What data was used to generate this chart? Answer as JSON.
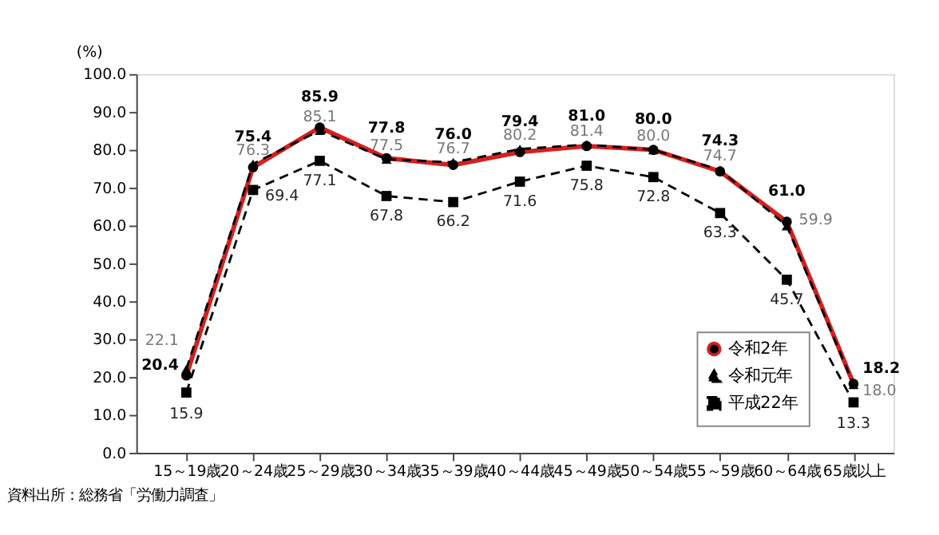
{
  "chart_data": {
    "type": "line",
    "ylabel": "(%)",
    "categories": [
      "15～19歳",
      "20～24歳",
      "25～29歳",
      "30～34歳",
      "35～39歳",
      "40～44歳",
      "45～49歳",
      "50～54歳",
      "55～59歳",
      "60～64歳",
      "65歳以上"
    ],
    "series": [
      {
        "name": "令和2年",
        "color": "#d42020",
        "marker": "circle",
        "line_style": "solid",
        "values": [
          20.4,
          75.4,
          85.9,
          77.8,
          76.0,
          79.4,
          81.0,
          80.0,
          74.3,
          61.0,
          18.2
        ],
        "value_labels": [
          "20.4",
          "75.4",
          "85.9",
          "77.8",
          "76.0",
          "79.4",
          "81.0",
          "80.0",
          "74.3",
          "61.0",
          "18.2"
        ]
      },
      {
        "name": "令和元年",
        "color": "#000000",
        "marker": "triangle",
        "line_style": "dashed",
        "values": [
          22.1,
          76.3,
          85.1,
          77.5,
          76.7,
          80.2,
          81.4,
          80.0,
          74.7,
          59.9,
          18.0
        ],
        "value_labels": [
          "22.1",
          "76.3",
          "85.1",
          "77.5",
          "76.7",
          "80.2",
          "81.4",
          "80.0",
          "74.7",
          "59.9",
          "18.0"
        ]
      },
      {
        "name": "平成22年",
        "color": "#000000",
        "marker": "square",
        "line_style": "dashed",
        "values": [
          15.9,
          69.4,
          77.1,
          67.8,
          66.2,
          71.6,
          75.8,
          72.8,
          63.3,
          45.7,
          13.3
        ],
        "value_labels": [
          "15.9",
          "69.4",
          "77.1",
          "67.8",
          "66.2",
          "71.6",
          "75.8",
          "72.8",
          "63.3",
          "45.7",
          "13.3"
        ]
      }
    ],
    "ylim": [
      0,
      100
    ],
    "yticks": [
      {
        "value": 0,
        "label": "0.0"
      },
      {
        "value": 10,
        "label": "10.0"
      },
      {
        "value": 20,
        "label": "20.0"
      },
      {
        "value": 30,
        "label": "30.0"
      },
      {
        "value": 40,
        "label": "40.0"
      },
      {
        "value": 50,
        "label": "50.0"
      },
      {
        "value": 60,
        "label": "60.0"
      },
      {
        "value": 70,
        "label": "70.0"
      },
      {
        "value": 80,
        "label": "80.0"
      },
      {
        "value": 90,
        "label": "90.0"
      },
      {
        "value": 100,
        "label": "100.0"
      }
    ],
    "grid": false,
    "legend": "bottom right",
    "annotations": [
      "資料出所：総務省「労働力調査」"
    ]
  }
}
